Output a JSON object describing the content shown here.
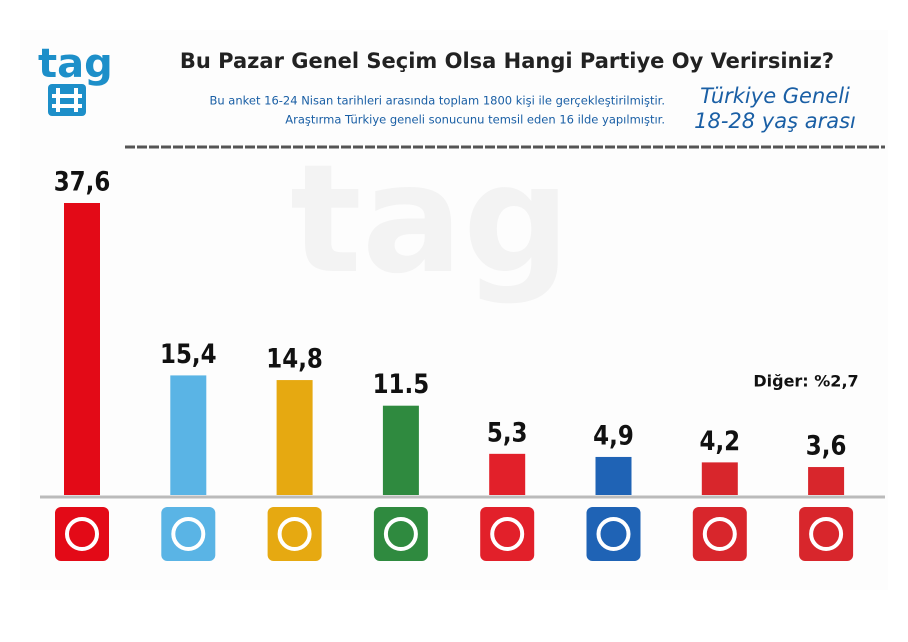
{
  "chart_data": {
    "type": "bar",
    "title": "Bu Pazar Genel Seçim Olsa Hangi Partiye Oy Verirsiniz?",
    "subtitle": [
      "Bu anket 16-24 Nisan tarihleri arasında  toplam 1800 kişi ile gerçekleştirilmiştir.",
      "Araştırma Türkiye geneli sonucunu temsil eden 16 ilde yapılmıştır."
    ],
    "scope": [
      "Türkiye Geneli",
      "18-28 yaş arası"
    ],
    "brand": "tag",
    "annotation": "Diğer: %2,7",
    "values": [
      37.6,
      15.4,
      14.8,
      11.5,
      5.3,
      4.9,
      4.2,
      3.6
    ],
    "value_labels": [
      "37,6",
      "15,4",
      "14,8",
      "11.5",
      "5,3",
      "4,9",
      "4,2",
      "3,6"
    ],
    "colors": [
      "#e30a17",
      "#5ab4e5",
      "#e6a911",
      "#2f8a3f",
      "#e2202a",
      "#1f63b5",
      "#d8262c",
      "#d8262c"
    ]
  }
}
